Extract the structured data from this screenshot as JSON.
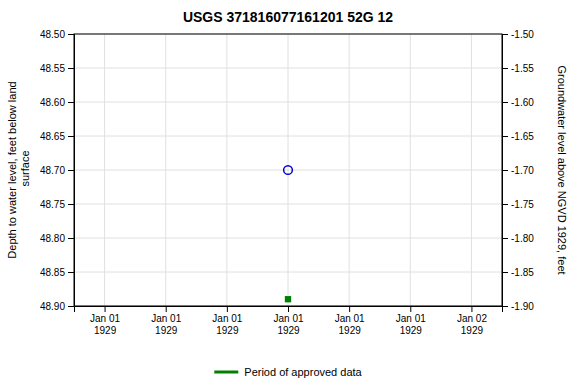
{
  "chart_data": {
    "type": "scatter",
    "title": "USGS 371816077161201 52G 12",
    "ylabel": "Depth to water level, feet below land\n surface",
    "y2label": "Groundwater level above NGVD 1929, feet",
    "categories": [
      "Jan 01\n1929",
      "Jan 01\n1929",
      "Jan 01\n1929",
      "Jan 01\n1929",
      "Jan 01\n1929",
      "Jan 01\n1929",
      "Jan 02\n1929"
    ],
    "series": [
      {
        "color": "#0000cc",
        "marker": "circle-open",
        "values": [
          null,
          null,
          null,
          48.7,
          null,
          null,
          null
        ]
      },
      {
        "name": "Period of approved data",
        "color": "#008000",
        "marker": "square",
        "values": [
          null,
          null,
          null,
          48.89,
          null,
          null,
          null
        ]
      }
    ],
    "ylim": [
      48.9,
      48.5
    ],
    "yticks": [
      {
        "value": 48.5,
        "label": "48.50"
      },
      {
        "value": 48.55,
        "label": "48.55"
      },
      {
        "value": 48.6,
        "label": "48.60"
      },
      {
        "value": 48.65,
        "label": "48.65"
      },
      {
        "value": 48.7,
        "label": "48.70"
      },
      {
        "value": 48.75,
        "label": "48.75"
      },
      {
        "value": 48.8,
        "label": "48.80"
      },
      {
        "value": 48.85,
        "label": "48.85"
      },
      {
        "value": 48.9,
        "label": "48.90"
      }
    ],
    "y2lim": [
      -1.9,
      -1.5
    ],
    "y2ticks": [
      {
        "value": -1.5,
        "label": "-1.50"
      },
      {
        "value": -1.55,
        "label": "-1.55"
      },
      {
        "value": -1.6,
        "label": "-1.60"
      },
      {
        "value": -1.65,
        "label": "-1.65"
      },
      {
        "value": -1.7,
        "label": "-1.70"
      },
      {
        "value": -1.75,
        "label": "-1.75"
      },
      {
        "value": -1.8,
        "label": "-1.80"
      },
      {
        "value": -1.85,
        "label": "-1.85"
      },
      {
        "value": -1.9,
        "label": "-1.90"
      }
    ],
    "grid": true,
    "legend": "bottom"
  }
}
